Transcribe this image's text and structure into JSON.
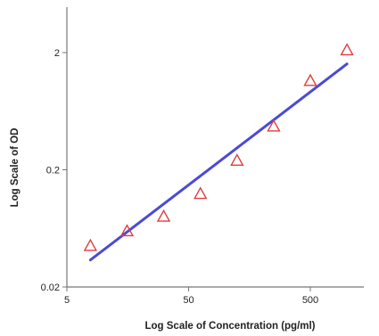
{
  "chart_data": {
    "type": "scatter",
    "title": "",
    "xlabel": "Log Scale of Concentration (pg/ml)",
    "ylabel": "Log Scale of OD",
    "x_scale": "log",
    "y_scale": "log",
    "xlim": [
      5,
      1000
    ],
    "ylim": [
      0.02,
      5
    ],
    "x_ticks": [
      {
        "value": 5,
        "label": "5"
      },
      {
        "value": 50,
        "label": "50"
      },
      {
        "value": 500,
        "label": "500"
      }
    ],
    "y_ticks": [
      {
        "value": 0.02,
        "label": "0.02"
      },
      {
        "value": 0.2,
        "label": "0.2"
      },
      {
        "value": 2,
        "label": "2"
      }
    ],
    "grid": false,
    "legend": "none",
    "series": [
      {
        "kind": "points",
        "marker": "triangle-open",
        "color": "#e03c3c",
        "x": [
          7.8,
          15.6,
          31.2,
          62.5,
          125,
          250,
          500,
          1000
        ],
        "y": [
          0.045,
          0.06,
          0.08,
          0.125,
          0.24,
          0.47,
          1.15,
          2.1
        ]
      },
      {
        "kind": "fit-line",
        "color": "#4a4ad6",
        "x": [
          7.8,
          1000
        ],
        "y": [
          0.034,
          1.6
        ]
      }
    ]
  }
}
